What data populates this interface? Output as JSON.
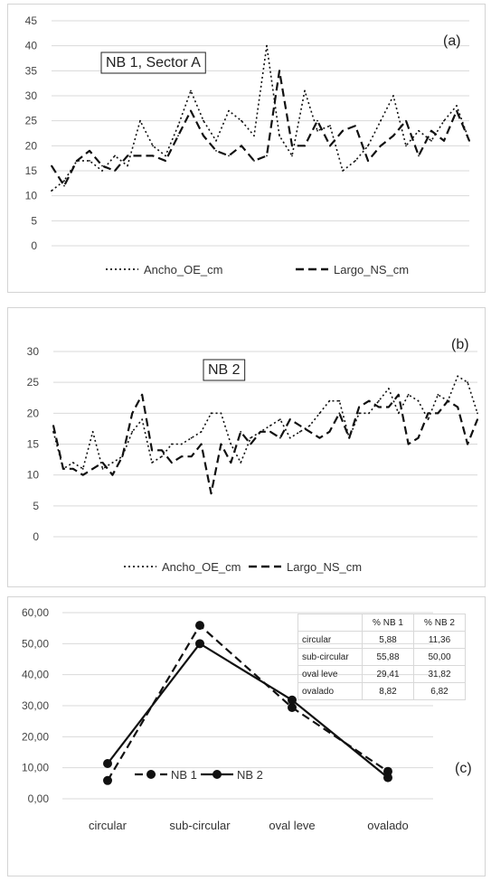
{
  "chart_data": [
    {
      "type": "line",
      "title": "NB 1, Sector A",
      "panel_tag": "(a)",
      "ylim": [
        0,
        45
      ],
      "yticks": [
        "0",
        "5",
        "10",
        "15",
        "20",
        "25",
        "30",
        "35",
        "40",
        "45"
      ],
      "grid": true,
      "legend_position": "bottom",
      "x": [
        1,
        2,
        3,
        4,
        5,
        6,
        7,
        8,
        9,
        10,
        11,
        12,
        13,
        14,
        15,
        16,
        17,
        18,
        19,
        20,
        21,
        22,
        23,
        24,
        25,
        26,
        27,
        28,
        29,
        30,
        31,
        32,
        33,
        34
      ],
      "series": [
        {
          "name": "Ancho_OE_cm",
          "style": "dotted",
          "values": [
            11,
            13,
            17,
            17,
            15,
            18,
            16,
            25,
            20,
            18,
            24,
            31,
            25,
            21,
            27,
            25,
            22,
            40,
            22,
            18,
            31,
            23,
            24,
            15,
            17,
            20,
            25,
            30,
            20,
            23,
            21,
            25,
            28,
            21
          ]
        },
        {
          "name": "Largo_NS_cm",
          "style": "dashed",
          "values": [
            16,
            12,
            17,
            19,
            16,
            15,
            18,
            18,
            18,
            17,
            22,
            27,
            22,
            19,
            18,
            20,
            17,
            18,
            35,
            20,
            20,
            25,
            20,
            23,
            24,
            17,
            20,
            22,
            25,
            18,
            23,
            21,
            27,
            21
          ]
        }
      ]
    },
    {
      "type": "line",
      "title": "NB 2",
      "panel_tag": "(b)",
      "ylim": [
        0,
        30
      ],
      "yticks": [
        "0",
        "5",
        "10",
        "15",
        "20",
        "25",
        "30"
      ],
      "grid": true,
      "legend_position": "bottom",
      "x": [
        1,
        2,
        3,
        4,
        5,
        6,
        7,
        8,
        9,
        10,
        11,
        12,
        13,
        14,
        15,
        16,
        17,
        18,
        19,
        20,
        21,
        22,
        23,
        24,
        25,
        26,
        27,
        28,
        29,
        30,
        31,
        32,
        33,
        34,
        35,
        36,
        37,
        38,
        39,
        40,
        41,
        42,
        43,
        44
      ],
      "series": [
        {
          "name": "Ancho_OE_cm",
          "style": "dotted",
          "values": [
            17,
            11,
            12,
            11,
            17,
            11,
            12,
            13,
            17,
            19,
            12,
            13,
            15,
            15,
            16,
            17,
            20,
            20,
            15,
            12,
            16,
            17,
            18,
            19,
            16,
            17,
            18,
            20,
            22,
            22,
            16,
            20,
            20,
            22,
            24,
            20,
            23,
            22,
            19,
            23,
            22,
            26,
            25,
            20
          ]
        },
        {
          "name": "Largo_NS_cm",
          "style": "dashed",
          "values": [
            18,
            11,
            11,
            10,
            11,
            12,
            10,
            13,
            20,
            23,
            14,
            14,
            12,
            13,
            13,
            15,
            7,
            15,
            12,
            17,
            15,
            17,
            17,
            16,
            19,
            18,
            17,
            16,
            17,
            20,
            16,
            21,
            22,
            21,
            21,
            23,
            15,
            16,
            20,
            20,
            22,
            21,
            15,
            19
          ]
        }
      ]
    },
    {
      "type": "line",
      "title": "",
      "panel_tag": "(c)",
      "ylim": [
        0,
        60
      ],
      "yticks": [
        "0,00",
        "10,00",
        "20,00",
        "30,00",
        "40,00",
        "50,00",
        "60,00"
      ],
      "grid": true,
      "legend_position": "center-left",
      "categories": [
        "circular",
        "sub-circular",
        "oval leve",
        "ovalado"
      ],
      "series": [
        {
          "name": "NB 1",
          "style": "dashed",
          "values": [
            5.88,
            55.88,
            29.41,
            8.82
          ]
        },
        {
          "name": "NB 2",
          "style": "solid",
          "values": [
            11.36,
            50.0,
            31.82,
            6.82
          ]
        }
      ],
      "table": {
        "header": [
          "",
          "% NB 1",
          "% NB 2"
        ],
        "rows": [
          [
            "circular",
            "5,88",
            "11,36"
          ],
          [
            "sub-circular",
            "55,88",
            "50,00"
          ],
          [
            "oval leve",
            "29,41",
            "31,82"
          ],
          [
            "ovalado",
            "8,82",
            "6,82"
          ]
        ]
      }
    }
  ]
}
